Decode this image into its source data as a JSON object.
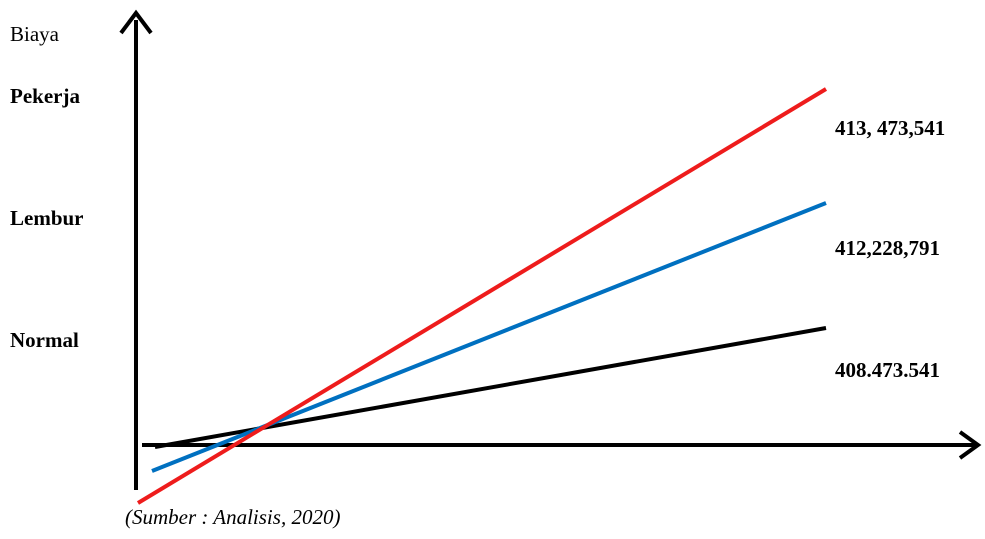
{
  "chart_data": {
    "type": "line",
    "ylabel": "Biaya",
    "y_categories": [
      "Pekerja",
      "Lembur",
      "Normal"
    ],
    "series": [
      {
        "color": "#ee1c1c",
        "value_label": "413, 473,541"
      },
      {
        "color": "#0070c0",
        "value_label": "412,228,791"
      },
      {
        "color": "#000000",
        "value_label": "408.473.541"
      }
    ],
    "grid": false,
    "legend": "none",
    "source": "(Sumber : Analisis, 2020)"
  }
}
